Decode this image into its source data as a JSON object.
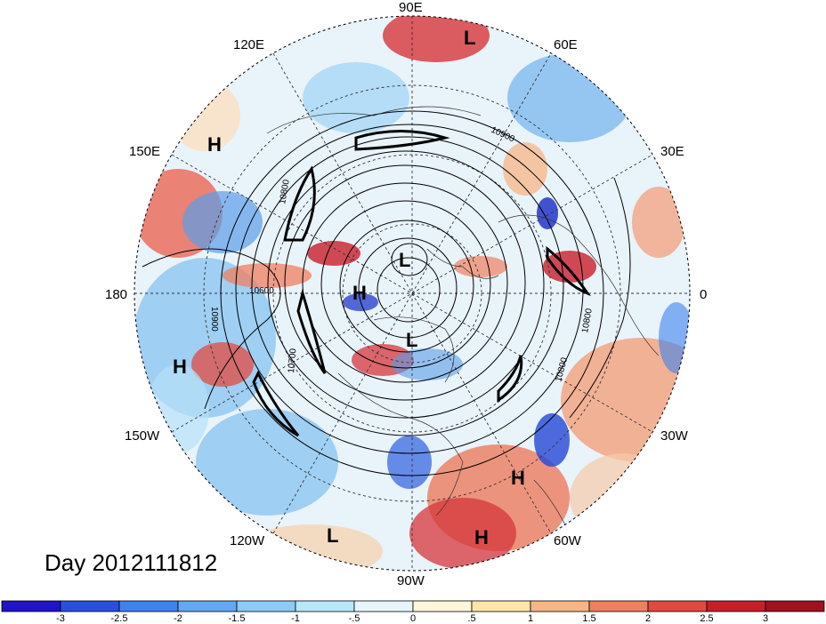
{
  "title": "Day 2012111812",
  "longitude_labels": {
    "n": "90E",
    "ne": "60E",
    "ene": "30E",
    "e": "0",
    "ese": "30W",
    "se": "60W",
    "s": "90W",
    "sw": "120W",
    "wsw": "150W",
    "w": "180",
    "wnw": "150E",
    "nw": "120E"
  },
  "pressure_centers": [
    {
      "label": "L",
      "id": "top"
    },
    {
      "label": "H",
      "id": "nw"
    },
    {
      "label": "L",
      "id": "pole"
    },
    {
      "label": "H",
      "id": "alaska"
    },
    {
      "label": "L",
      "id": "hudson"
    },
    {
      "label": "H",
      "id": "pacific"
    },
    {
      "label": "H",
      "id": "atlantic"
    },
    {
      "label": "H",
      "id": "carib"
    },
    {
      "label": "L",
      "id": "epac"
    }
  ],
  "contour_labels": [
    "10900",
    "10800",
    "10900",
    "10600",
    "10700",
    "10800",
    "10800"
  ],
  "colorbar": {
    "ticks": [
      "-3",
      "-2.5",
      "-2",
      "-1.5",
      "-1",
      "-.5",
      "0",
      ".5",
      "1",
      "1.5",
      "2",
      "2.5",
      "3"
    ],
    "colors": [
      "#1f14c8",
      "#2a4fe0",
      "#3d82ee",
      "#62a8f2",
      "#8ccbf7",
      "#b6e8fa",
      "#e6f6fb",
      "#fdf6d8",
      "#fde4a8",
      "#f7b585",
      "#ef7f5e",
      "#e24a40",
      "#c81e2a",
      "#a0101e"
    ]
  }
}
